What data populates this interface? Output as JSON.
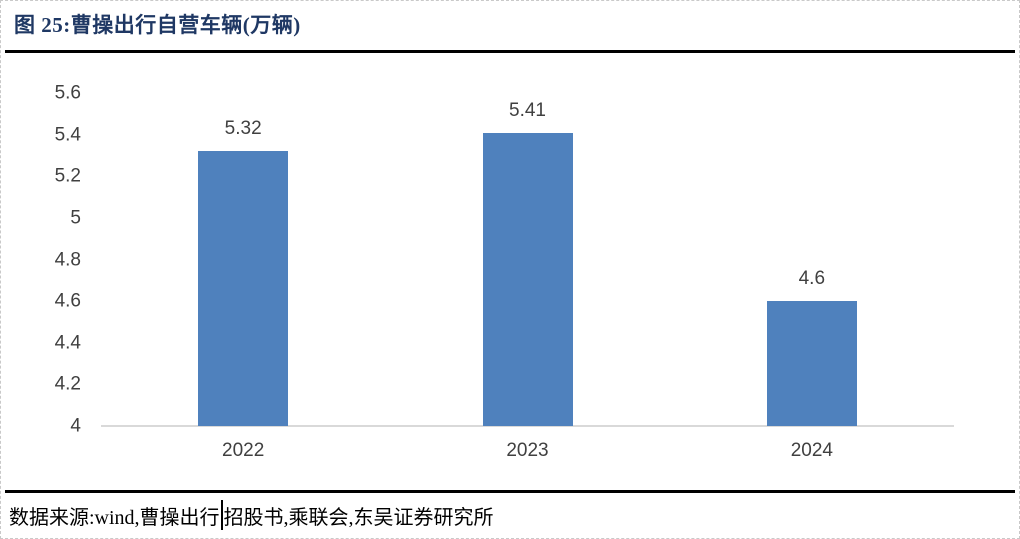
{
  "figure": {
    "title": "图 25:曹操出行自营车辆(万辆)",
    "source_prefix": "数据来源:wind,曹操出行",
    "source_suffix": "招股书,乘联会,东吴证券研究所"
  },
  "chart_data": {
    "type": "bar",
    "title": "曹操出行自营车辆(万辆)",
    "categories": [
      "2022",
      "2023",
      "2024"
    ],
    "values": [
      5.32,
      5.41,
      4.6
    ],
    "data_labels": [
      "5.32",
      "5.41",
      "4.6"
    ],
    "xlabel": "",
    "ylabel": "",
    "ylim": [
      4,
      5.6
    ],
    "ytick_step": 0.2,
    "yticks": [
      "5.6",
      "5.4",
      "5.2",
      "5",
      "4.8",
      "4.6",
      "4.4",
      "4.2",
      "4"
    ],
    "grid": false,
    "legend": "none",
    "bar_color": "#4F81BD",
    "axis_line_color": "#D9D9D9",
    "tick_label_color": "#404040"
  },
  "colors": {
    "title_navy": "#1F3864",
    "divider_black": "#000000",
    "bar_blue": "#4F81BD",
    "axis_gray": "#D9D9D9",
    "label_gray": "#404040",
    "page_border_dashed": "#C9C9C9"
  }
}
